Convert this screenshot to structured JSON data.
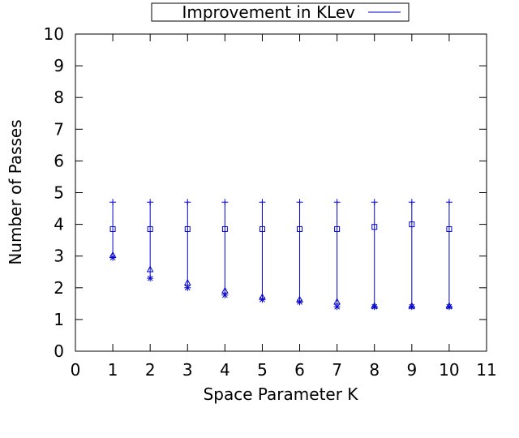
{
  "chart_data": {
    "type": "scatter",
    "title": "",
    "xlabel": "Space Parameter K",
    "ylabel": "Number of Passes",
    "xlim": [
      0,
      11
    ],
    "ylim": [
      0,
      10
    ],
    "xticks": [
      0,
      1,
      2,
      3,
      4,
      5,
      6,
      7,
      8,
      9,
      10,
      11
    ],
    "yticks": [
      0,
      1,
      2,
      3,
      4,
      5,
      6,
      7,
      8,
      9,
      10
    ],
    "grid": false,
    "legend_position": "top-center",
    "legend": [
      {
        "label": "Improvement in KLev",
        "marker": "line"
      }
    ],
    "x": [
      1,
      2,
      3,
      4,
      5,
      6,
      7,
      8,
      9,
      10
    ],
    "marker_series": [
      {
        "marker": "plus",
        "values": [
          4.7,
          4.7,
          4.7,
          4.7,
          4.7,
          4.7,
          4.7,
          4.7,
          4.7,
          4.7
        ]
      },
      {
        "marker": "square",
        "values": [
          3.85,
          3.85,
          3.85,
          3.85,
          3.85,
          3.85,
          3.85,
          3.92,
          4.0,
          3.85
        ]
      },
      {
        "marker": "triangle",
        "values": [
          3.02,
          2.57,
          2.15,
          1.9,
          1.7,
          1.62,
          1.55,
          1.42,
          1.42,
          1.42
        ]
      },
      {
        "marker": "asterisk",
        "values": [
          2.95,
          2.3,
          2.0,
          1.77,
          1.63,
          1.55,
          1.4,
          1.4,
          1.4,
          1.4
        ]
      }
    ],
    "series_color": "#0000cc"
  }
}
